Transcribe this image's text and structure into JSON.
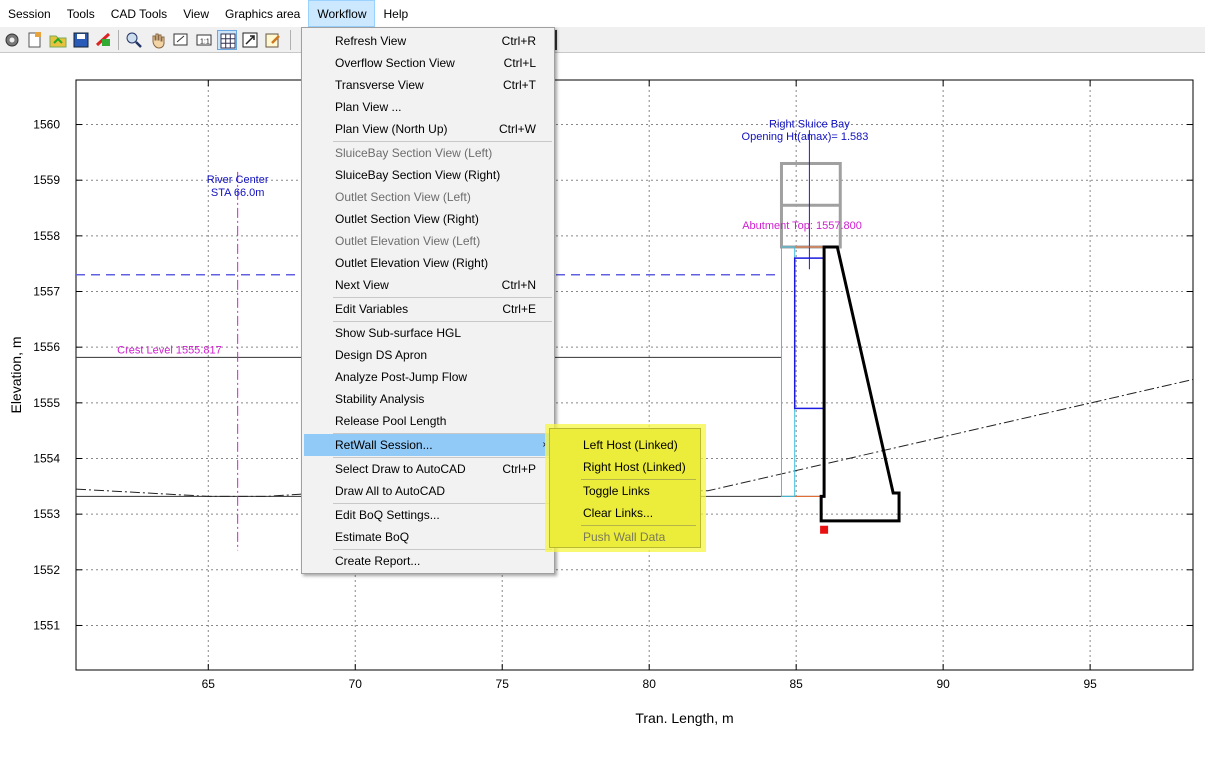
{
  "menubar": {
    "items": [
      "Session",
      "Tools",
      "CAD Tools",
      "View",
      "Graphics area",
      "Workflow",
      "Help"
    ],
    "active": "Workflow"
  },
  "toolbar": {
    "icons": [
      "gear-icon",
      "new-file-icon",
      "open-folder-icon",
      "save-icon",
      "clear-icon",
      "zoom-icon",
      "pan-hand-icon",
      "zoom-extents-icon",
      "scale-1-1-icon",
      "grid-icon",
      "expand-icon",
      "edit-icon"
    ]
  },
  "workflow_menu": {
    "items": [
      {
        "label": "Refresh View",
        "shortcut": "Ctrl+R",
        "enabled": true
      },
      {
        "label": "Overflow Section View",
        "shortcut": "Ctrl+L",
        "enabled": true
      },
      {
        "label": "Transverse View",
        "shortcut": "Ctrl+T",
        "enabled": true
      },
      {
        "label": "Plan View ...",
        "shortcut": "",
        "enabled": true
      },
      {
        "label": "Plan View (North Up)",
        "shortcut": "Ctrl+W",
        "enabled": true
      },
      {
        "label": "SluiceBay Section View (Left)",
        "shortcut": "",
        "enabled": false
      },
      {
        "label": "SluiceBay Section View (Right)",
        "shortcut": "",
        "enabled": true
      },
      {
        "label": "Outlet Section View (Left)",
        "shortcut": "",
        "enabled": false
      },
      {
        "label": "Outlet Section View (Right)",
        "shortcut": "",
        "enabled": true
      },
      {
        "label": "Outlet Elevation View (Left)",
        "shortcut": "",
        "enabled": false
      },
      {
        "label": "Outlet Elevation View (Right)",
        "shortcut": "",
        "enabled": true
      },
      {
        "label": "Next View",
        "shortcut": "Ctrl+N",
        "enabled": true
      },
      {
        "label": "Edit Variables",
        "shortcut": "Ctrl+E",
        "enabled": true
      },
      {
        "label": "Show Sub-surface HGL",
        "shortcut": "",
        "enabled": true
      },
      {
        "label": "Design DS Apron",
        "shortcut": "",
        "enabled": true
      },
      {
        "label": "Analyze Post-Jump Flow",
        "shortcut": "",
        "enabled": true
      },
      {
        "label": "Stability Analysis",
        "shortcut": "",
        "enabled": true
      },
      {
        "label": "Release Pool Length",
        "shortcut": "",
        "enabled": true
      },
      {
        "label": "RetWall Session...",
        "shortcut": "",
        "enabled": true,
        "submenu": true,
        "highlighted": true
      },
      {
        "label": "Select Draw to AutoCAD",
        "shortcut": "Ctrl+P",
        "enabled": true
      },
      {
        "label": "Draw All to AutoCAD",
        "shortcut": "",
        "enabled": true
      },
      {
        "label": "Edit BoQ Settings...",
        "shortcut": "",
        "enabled": true
      },
      {
        "label": "Estimate BoQ",
        "shortcut": "",
        "enabled": true
      },
      {
        "label": "Create Report...",
        "shortcut": "",
        "enabled": true
      }
    ]
  },
  "retwall_submenu": {
    "items": [
      {
        "label": "Left Host (Linked)",
        "enabled": true
      },
      {
        "label": "Right Host (Linked)",
        "enabled": true
      },
      {
        "label": "Toggle Links",
        "enabled": true
      },
      {
        "label": "Clear Links...",
        "enabled": true
      },
      {
        "label": "Push Wall Data",
        "enabled": false
      }
    ]
  },
  "chart_data": {
    "type": "line",
    "xlabel": "Tran. Length, m",
    "ylabel": "Elevation, m",
    "xlim": [
      60.5,
      98.5
    ],
    "ylim": [
      1550.2,
      1560.8
    ],
    "x_ticks": [
      65,
      70,
      75,
      80,
      85,
      90,
      95
    ],
    "y_ticks": [
      1551,
      1552,
      1553,
      1554,
      1555,
      1556,
      1557,
      1558,
      1559,
      1560
    ],
    "grid": true,
    "annotations": {
      "river_center": "River Center",
      "river_center_sta": "STA 66.0m",
      "crest_level": "Crest Level 1555.817",
      "right_sluice_bay": "Right Sluice Bay",
      "opening_ht": "Opening Ht(amax)= 1.583",
      "abutment_top": "Abutment Top: 1557.800"
    },
    "river_center_x": 66.0,
    "crest_level_y": 1555.817,
    "water_level_y": 1557.3,
    "ground_level_y": 1553.32,
    "abutment_top_y": 1557.8,
    "ground_profile": [
      [
        60.5,
        1553.45
      ],
      [
        65,
        1553.32
      ],
      [
        67,
        1553.32
      ],
      [
        70,
        1553.42
      ],
      [
        75,
        1553.42
      ],
      [
        82,
        1553.42
      ],
      [
        98.5,
        1555.42
      ]
    ],
    "sluice_bay_rect": {
      "x0": 84.5,
      "x1": 84.95,
      "y0": 1553.32,
      "y1": 1557.8
    },
    "gate_rect": {
      "x0": 84.95,
      "x1": 85.95,
      "y0": 1554.9,
      "y1": 1557.6
    },
    "gate_top_rect": {
      "x0": 84.5,
      "x1": 86.5,
      "y0": 1557.8,
      "y1": 1559.3
    },
    "wall_outline": [
      [
        85.9,
        1557.8
      ],
      [
        86.4,
        1557.8
      ],
      [
        88.3,
        1553.38
      ],
      [
        88.5,
        1553.38
      ],
      [
        88.5,
        1552.88
      ],
      [
        85.85,
        1552.88
      ],
      [
        85.85,
        1553.32
      ],
      [
        85.95,
        1553.32
      ],
      [
        85.95,
        1557.8
      ]
    ],
    "marker_point": [
      85.95,
      1552.72
    ]
  }
}
